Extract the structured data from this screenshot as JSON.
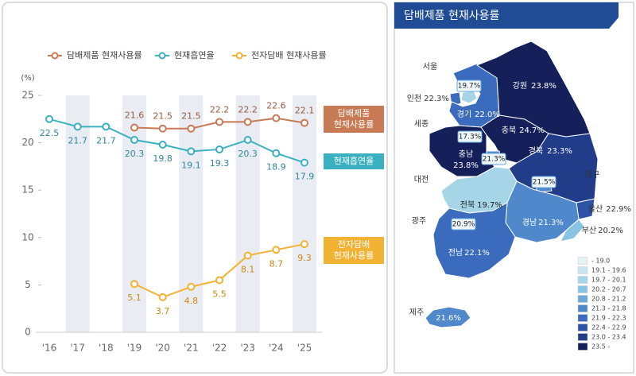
{
  "chart_data": [
    {
      "type": "line",
      "y_unit": "(%)",
      "categories": [
        "'16",
        "'17",
        "'18",
        "'19",
        "'20",
        "'21",
        "'22",
        "'23",
        "'24",
        "'25"
      ],
      "series": [
        {
          "name": "담배제품 현재사용률",
          "color": "#c87a55",
          "values": [
            null,
            null,
            null,
            21.6,
            21.5,
            21.5,
            22.2,
            22.2,
            22.6,
            22.1
          ],
          "end_label": [
            "담배제품",
            "현재사용률"
          ]
        },
        {
          "name": "현재흡연율",
          "color": "#3bb0c0",
          "values": [
            22.5,
            21.7,
            21.7,
            20.3,
            19.8,
            19.1,
            19.3,
            20.3,
            18.9,
            17.9
          ],
          "end_label": [
            "현재흡연율"
          ]
        },
        {
          "name": "전자담배 현재사용률",
          "color": "#f2b233",
          "values": [
            null,
            null,
            null,
            5.1,
            3.7,
            4.8,
            5.5,
            8.1,
            8.7,
            9.3
          ],
          "end_label": [
            "전자담배",
            "현재사용률"
          ]
        }
      ],
      "ylim": [
        0,
        25
      ],
      "yticks": [
        0,
        5,
        10,
        15,
        20,
        25
      ]
    },
    {
      "type": "choropleth",
      "title": "담배제품 현재사용률",
      "categories": [
        "서울",
        "인천",
        "경기",
        "강원",
        "세종",
        "충북",
        "충남",
        "대전",
        "경북",
        "대구",
        "전북",
        "광주",
        "울산",
        "경남",
        "부산",
        "전남",
        "제주"
      ],
      "values": [
        19.7,
        22.3,
        22.0,
        23.8,
        17.3,
        24.7,
        23.8,
        21.3,
        23.3,
        21.5,
        19.7,
        20.9,
        22.9,
        21.3,
        20.2,
        22.1,
        21.6
      ],
      "value_labels": [
        "19.7%",
        "22.3%",
        "22.0%",
        "23.8%",
        "17.3%",
        "24.7%",
        "23.8%",
        "21.3%",
        "23.3%",
        "21.5%",
        "19.7%",
        "20.9%",
        "22.9%",
        "21.3%",
        "20.2%",
        "22.1%",
        "21.6%"
      ],
      "colors": [
        "#a6d5e8",
        "#3a6bbd",
        "#3a6bbd",
        "#15205a",
        "#e4f1f5",
        "#15205a",
        "#15205a",
        "#4f88cb",
        "#213c88",
        "#4f88cb",
        "#a6d5e8",
        "#6aa7da",
        "#2d53a5",
        "#4f88cb",
        "#87c3e2",
        "#3a6bbd",
        "#4f88cb"
      ],
      "legend": {
        "labels": [
          "- 19.0",
          "19.1 - 19.6",
          "19.7 - 20.1",
          "20.2 - 20.7",
          "20.8 - 21.2",
          "21.3 - 21.8",
          "21.9 - 22.3",
          "22.4 - 22.9",
          "23.0 - 23.4",
          "23.5 -"
        ],
        "colors": [
          "#e4f1f5",
          "#c8e5ef",
          "#a6d5e8",
          "#87c3e2",
          "#6aa7da",
          "#4f88cb",
          "#3a6bbd",
          "#2d53a5",
          "#213c88",
          "#15205a"
        ]
      }
    }
  ]
}
